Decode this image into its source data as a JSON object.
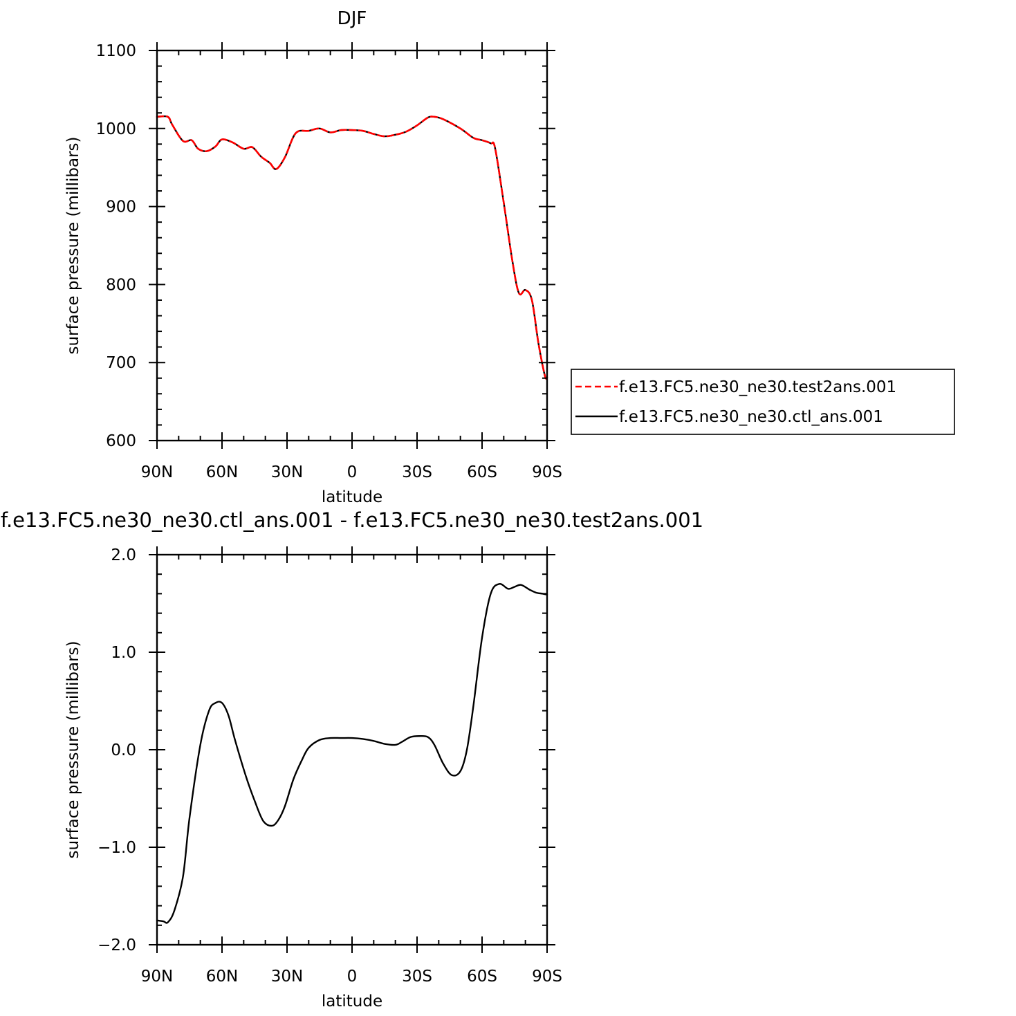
{
  "chart_data": [
    {
      "type": "line",
      "title": "DJF",
      "xlabel": "latitude",
      "ylabel": "surface pressure (millibars)",
      "xlim": [
        90,
        -90
      ],
      "ylim": [
        600,
        1100
      ],
      "x_ticks": [
        90,
        60,
        30,
        0,
        -30,
        -60,
        -90
      ],
      "x_tick_labels": [
        "90N",
        "60N",
        "30N",
        "0",
        "30S",
        "60S",
        "90S"
      ],
      "y_ticks": [
        600,
        700,
        800,
        900,
        1000,
        1100
      ],
      "y_tick_labels": [
        "600",
        "700",
        "800",
        "900",
        "1000",
        "1100"
      ],
      "legend_position": "right",
      "series": [
        {
          "name": "f.e13.FC5.ne30_ne30.test2ans.001",
          "color": "#ff0000",
          "dash": "dashed",
          "x": [
            90,
            85,
            83,
            78,
            74,
            71,
            67,
            63,
            60,
            55,
            50,
            46,
            42,
            38,
            35,
            31,
            26,
            20,
            15,
            10,
            5,
            0,
            -5,
            -10,
            -15,
            -20,
            -25,
            -30,
            -35,
            -38,
            -42,
            -50,
            -56,
            -60,
            -64,
            -66,
            -70,
            -74,
            -77,
            -80,
            -83,
            -86,
            -89,
            -90
          ],
          "y": [
            1015,
            1015,
            1005,
            984,
            985,
            974,
            971,
            977,
            986,
            982,
            974,
            976,
            964,
            956,
            948,
            963,
            994,
            997,
            1000,
            995,
            998,
            998,
            997,
            993,
            990,
            992,
            996,
            1004,
            1014,
            1015,
            1012,
            1000,
            988,
            985,
            981,
            975,
            905,
            830,
            789,
            793,
            780,
            725,
            683,
            681
          ]
        },
        {
          "name": "f.e13.FC5.ne30_ne30.ctl_ans.001",
          "color": "#000000",
          "dash": "solid",
          "x": [
            90,
            85,
            83,
            78,
            74,
            71,
            67,
            63,
            60,
            55,
            50,
            46,
            42,
            38,
            35,
            31,
            26,
            20,
            15,
            10,
            5,
            0,
            -5,
            -10,
            -15,
            -20,
            -25,
            -30,
            -35,
            -38,
            -42,
            -50,
            -56,
            -60,
            -64,
            -66,
            -70,
            -74,
            -77,
            -80,
            -83,
            -86,
            -89,
            -90
          ],
          "y": [
            1015,
            1015,
            1005,
            984,
            985,
            974,
            971,
            977,
            986,
            982,
            974,
            976,
            964,
            956,
            948,
            963,
            994,
            997,
            1000,
            995,
            998,
            998,
            997,
            993,
            990,
            992,
            996,
            1004,
            1014,
            1015,
            1012,
            1000,
            988,
            985,
            981,
            975,
            905,
            830,
            789,
            793,
            780,
            725,
            683,
            681
          ]
        }
      ]
    },
    {
      "type": "line",
      "title": "f.e13.FC5.ne30_ne30.ctl_ans.001 - f.e13.FC5.ne30_ne30.test2ans.001",
      "xlabel": "latitude",
      "ylabel": "surface pressure (millibars)",
      "xlim": [
        90,
        -90
      ],
      "ylim": [
        -2.0,
        2.0
      ],
      "x_ticks": [
        90,
        60,
        30,
        0,
        -30,
        -60,
        -90
      ],
      "x_tick_labels": [
        "90N",
        "60N",
        "30N",
        "0",
        "30S",
        "60S",
        "90S"
      ],
      "y_ticks": [
        -2.0,
        -1.0,
        0.0,
        1.0,
        2.0
      ],
      "y_tick_labels": [
        "−2.0",
        "−1.0",
        "0.0",
        "1.0",
        "2.0"
      ],
      "series": [
        {
          "color": "#000000",
          "dash": "solid",
          "x": [
            90,
            87,
            85,
            82,
            78,
            75,
            70,
            66,
            63,
            60,
            57,
            54,
            49,
            45,
            41,
            37,
            34,
            31,
            27,
            23,
            20,
            15,
            10,
            5,
            0,
            -5,
            -10,
            -15,
            -20,
            -23,
            -27,
            -31,
            -35,
            -38,
            -42,
            -46,
            -50,
            -53,
            -56,
            -60,
            -64,
            -68,
            -72,
            -75,
            -78,
            -82,
            -85,
            -88,
            -90
          ],
          "y": [
            -1.75,
            -1.76,
            -1.77,
            -1.65,
            -1.3,
            -0.7,
            0.05,
            0.4,
            0.48,
            0.48,
            0.35,
            0.1,
            -0.27,
            -0.52,
            -0.73,
            -0.78,
            -0.72,
            -0.58,
            -0.3,
            -0.1,
            0.02,
            0.1,
            0.12,
            0.12,
            0.12,
            0.11,
            0.09,
            0.06,
            0.05,
            0.08,
            0.13,
            0.14,
            0.13,
            0.05,
            -0.14,
            -0.26,
            -0.22,
            0.0,
            0.45,
            1.15,
            1.6,
            1.7,
            1.65,
            1.67,
            1.69,
            1.64,
            1.61,
            1.6,
            1.59
          ]
        }
      ]
    }
  ]
}
